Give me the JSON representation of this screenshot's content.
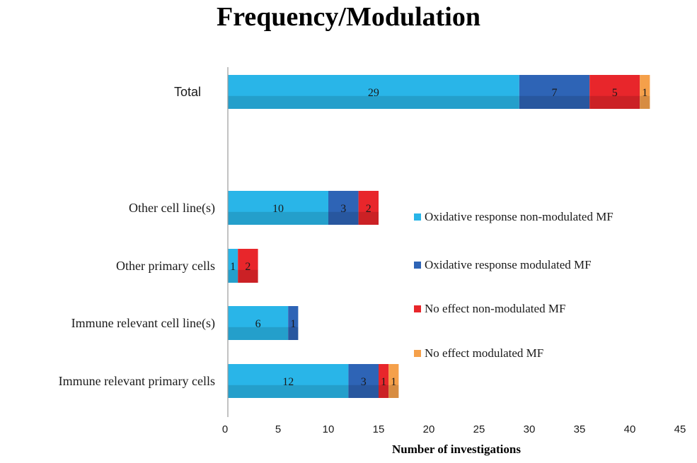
{
  "chart_data": {
    "type": "bar",
    "orientation": "horizontal",
    "stacked": true,
    "title": "Frequency/Modulation",
    "xlabel": "Number  of investigations",
    "ylabel": "",
    "xlim": [
      0,
      45
    ],
    "xticks": [
      0,
      5,
      10,
      15,
      20,
      25,
      30,
      35,
      40,
      45
    ],
    "grid": false,
    "legend_position": "right",
    "categories": [
      "Total",
      "Other cell line(s)",
      "Other primary cells",
      "Immune relevant cell line(s)",
      "Immune relevant primary cells"
    ],
    "series": [
      {
        "name": "Oxidative response non-modulated MF",
        "color": "#29b5e8",
        "values": [
          29,
          10,
          1,
          6,
          12
        ]
      },
      {
        "name": "Oxidative response modulated MF",
        "color": "#2e64b6",
        "values": [
          7,
          3,
          0,
          1,
          3
        ]
      },
      {
        "name": "No effect non-modulated MF",
        "color": "#e8262b",
        "values": [
          5,
          2,
          2,
          0,
          1
        ]
      },
      {
        "name": "No effect modulated MF",
        "color": "#f5a04a",
        "values": [
          1,
          0,
          0,
          0,
          1
        ]
      }
    ]
  }
}
